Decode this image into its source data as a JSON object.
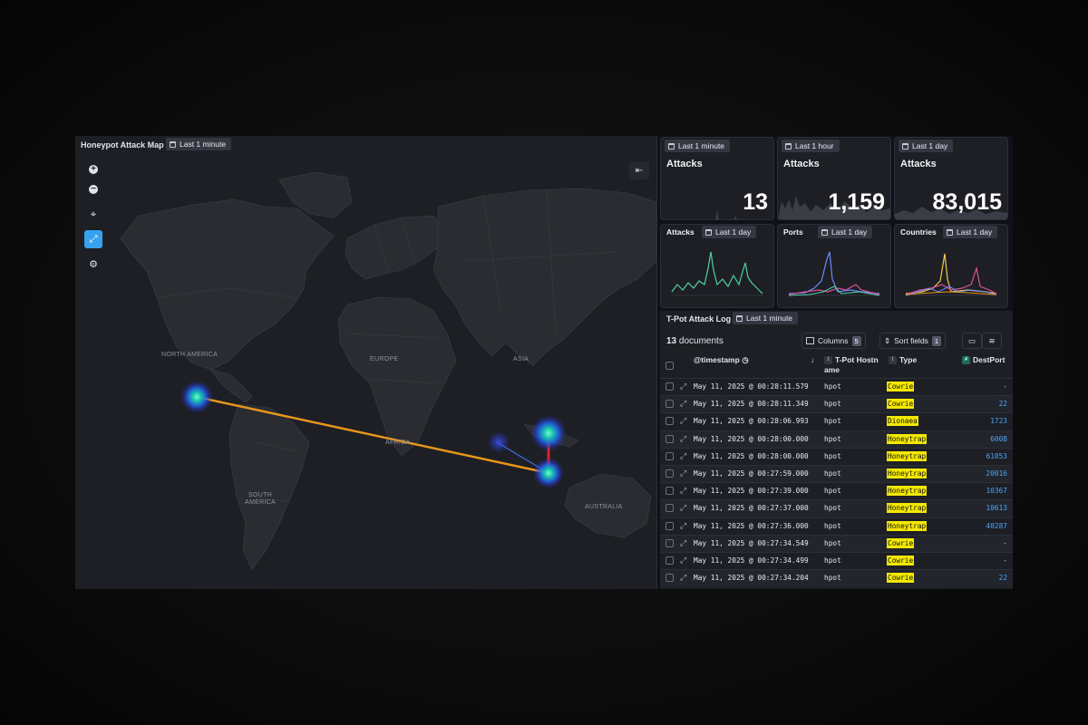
{
  "map_panel": {
    "title": "Honeypot Attack Map",
    "time_range": "Last 1 minute",
    "region_labels": {
      "north_america": "NORTH AMERICA",
      "europe": "EUROPE",
      "asia": "ASIA",
      "africa": "AFRICA",
      "south_america": "SOUTH AMERICA",
      "australia": "AUSTRALIA"
    },
    "controls": [
      "zoom-in-icon",
      "zoom-out-icon",
      "crosshair-icon",
      "measure-line-icon",
      "settings-wrench-icon"
    ],
    "colors": {
      "hotspot": "#19c9a8",
      "arc_primary": "#e8961c",
      "arc_secondary": "#e0202a",
      "arc_tertiary": "#3a6ef0"
    }
  },
  "metrics": [
    {
      "time_range": "Last 1 minute",
      "title": "Attacks",
      "value": "13"
    },
    {
      "time_range": "Last 1 hour",
      "title": "Attacks",
      "value": "1,159"
    },
    {
      "time_range": "Last 1 day",
      "title": "Attacks",
      "value": "83,015"
    }
  ],
  "mini_charts": [
    {
      "title": "Attacks",
      "time_range": "Last 1 day"
    },
    {
      "title": "Ports",
      "time_range": "Last 1 day"
    },
    {
      "title": "Countries",
      "time_range": "Last 1 day"
    }
  ],
  "log": {
    "title": "T-Pot Attack Log",
    "time_range": "Last 1 minute",
    "doc_count": "13",
    "doc_label": "documents",
    "columns_label": "Columns",
    "columns_count": "5",
    "sort_label": "Sort fields",
    "sort_count": "1",
    "headers": {
      "timestamp": "@timestamp",
      "hostname_1": "T-Pot Hostn",
      "hostname_2": "ame",
      "type": "Type",
      "destport": "DestPort",
      "tag_text": "t",
      "tag_num": "#"
    },
    "rows": [
      {
        "timestamp": "May 11, 2025 @ 00:28:11.579",
        "host": "hpot",
        "type": "Cowrie",
        "port": "-"
      },
      {
        "timestamp": "May 11, 2025 @ 00:28:11.349",
        "host": "hpot",
        "type": "Cowrie",
        "port": "22"
      },
      {
        "timestamp": "May 11, 2025 @ 00:28:06.993",
        "host": "hpot",
        "type": "Dionaea",
        "port": "1723"
      },
      {
        "timestamp": "May 11, 2025 @ 00:28:00.000",
        "host": "hpot",
        "type": "Honeytrap",
        "port": "6008"
      },
      {
        "timestamp": "May 11, 2025 @ 00:28:00.000",
        "host": "hpot",
        "type": "Honeytrap",
        "port": "61053"
      },
      {
        "timestamp": "May 11, 2025 @ 00:27:59.000",
        "host": "hpot",
        "type": "Honeytrap",
        "port": "20016"
      },
      {
        "timestamp": "May 11, 2025 @ 00:27:39.000",
        "host": "hpot",
        "type": "Honeytrap",
        "port": "10367"
      },
      {
        "timestamp": "May 11, 2025 @ 00:27:37.000",
        "host": "hpot",
        "type": "Honeytrap",
        "port": "10613"
      },
      {
        "timestamp": "May 11, 2025 @ 00:27:36.000",
        "host": "hpot",
        "type": "Honeytrap",
        "port": "40287"
      },
      {
        "timestamp": "May 11, 2025 @ 00:27:34.549",
        "host": "hpot",
        "type": "Cowrie",
        "port": "-"
      },
      {
        "timestamp": "May 11, 2025 @ 00:27:34.499",
        "host": "hpot",
        "type": "Cowrie",
        "port": "-"
      },
      {
        "timestamp": "May 11, 2025 @ 00:27:34.204",
        "host": "hpot",
        "type": "Cowrie",
        "port": "22"
      }
    ],
    "colors": {
      "type_highlight": "#f3e800",
      "port_link": "#4ca3ff"
    }
  }
}
